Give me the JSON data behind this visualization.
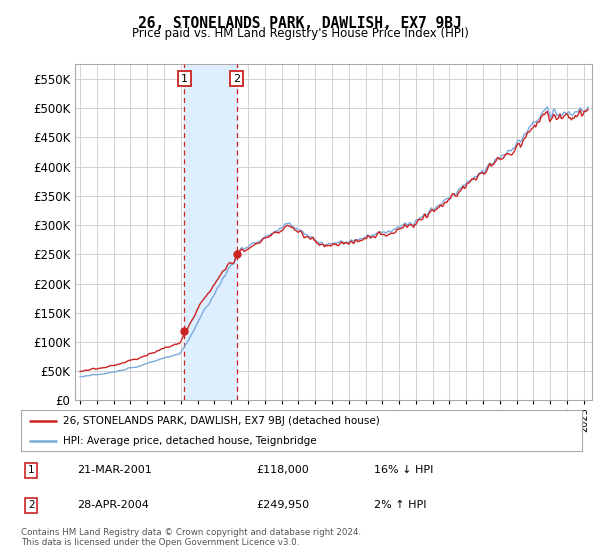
{
  "title": "26, STONELANDS PARK, DAWLISH, EX7 9BJ",
  "subtitle": "Price paid vs. HM Land Registry's House Price Index (HPI)",
  "ylim": [
    0,
    575000
  ],
  "yticks": [
    0,
    50000,
    100000,
    150000,
    200000,
    250000,
    300000,
    350000,
    400000,
    450000,
    500000,
    550000
  ],
  "xlim_start": 1994.7,
  "xlim_end": 2025.5,
  "purchase1_date": 2001.22,
  "purchase1_price": 118000,
  "purchase2_date": 2004.33,
  "purchase2_price": 249950,
  "purchase1_display": "21-MAR-2001",
  "purchase1_amount": "£118,000",
  "purchase1_hpi": "16% ↓ HPI",
  "purchase2_display": "28-APR-2004",
  "purchase2_amount": "£249,950",
  "purchase2_hpi": "2% ↑ HPI",
  "legend_line1": "26, STONELANDS PARK, DAWLISH, EX7 9BJ (detached house)",
  "legend_line2": "HPI: Average price, detached house, Teignbridge",
  "footer": "Contains HM Land Registry data © Crown copyright and database right 2024.\nThis data is licensed under the Open Government Licence v3.0.",
  "hpi_color": "#7aaadd",
  "price_color": "#cc2222",
  "shade_color": "#ddeeff",
  "vline_color": "#cc2222",
  "bg_color": "#ffffff",
  "grid_color": "#cccccc"
}
